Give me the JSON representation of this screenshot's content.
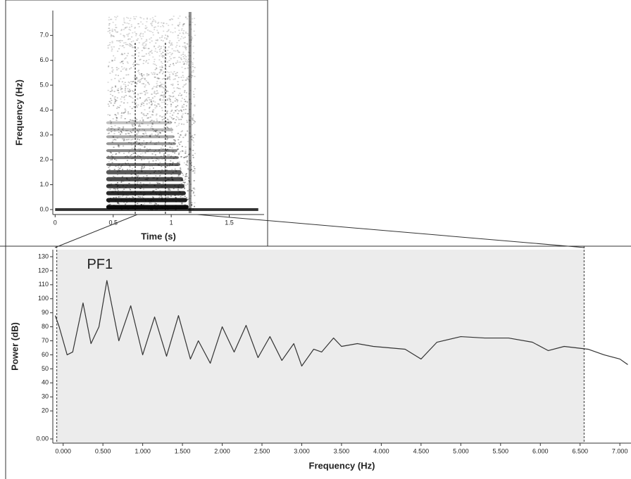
{
  "chart_data": [
    {
      "type": "spectrogram",
      "xlabel": "Time (s)",
      "ylabel": "Frequency (Hz)",
      "xlim": [
        -0.02,
        1.8
      ],
      "xticks": [
        0,
        0.5,
        1,
        1.5
      ],
      "ylim": [
        -0.2,
        8
      ],
      "yticks": [
        {
          "value": 0,
          "label": "0.0"
        },
        {
          "value": 1,
          "label": "1.0"
        },
        {
          "value": 2,
          "label": "2.0"
        },
        {
          "value": 3,
          "label": "3.0"
        },
        {
          "value": 4,
          "label": "4.0"
        },
        {
          "value": 5,
          "label": "5.0"
        },
        {
          "value": 6,
          "label": "6.0"
        },
        {
          "value": 7,
          "label": "7.0"
        }
      ]
    },
    {
      "type": "line",
      "xlabel": "Frequency (Hz)",
      "ylabel": "Power (dB)",
      "annotation": "PF1",
      "xlim": [
        -0.13,
        7.14
      ],
      "ylim": [
        -3,
        135
      ],
      "xticks": [
        {
          "value": 0,
          "label": "0.000"
        },
        {
          "value": 0.5,
          "label": "0.500"
        },
        {
          "value": 1,
          "label": "1.000"
        },
        {
          "value": 1.5,
          "label": "1.500"
        },
        {
          "value": 2,
          "label": "2.000"
        },
        {
          "value": 2.5,
          "label": "2.500"
        },
        {
          "value": 3,
          "label": "3.000"
        },
        {
          "value": 3.5,
          "label": "3.500"
        },
        {
          "value": 4,
          "label": "4.000"
        },
        {
          "value": 4.5,
          "label": "4.500"
        },
        {
          "value": 5,
          "label": "5.000"
        },
        {
          "value": 5.5,
          "label": "5.500"
        },
        {
          "value": 6,
          "label": "6.000"
        },
        {
          "value": 6.5,
          "label": "6.500"
        },
        {
          "value": 7,
          "label": "7.000"
        }
      ],
      "yticks": [
        {
          "value": 0,
          "label": "0.00"
        },
        20,
        30,
        40,
        50,
        60,
        70,
        80,
        90,
        100,
        110,
        120,
        130
      ],
      "shaded_range": [
        -0.08,
        6.55
      ],
      "color": "#333333",
      "x": [
        -0.1,
        -0.05,
        0.05,
        0.12,
        0.25,
        0.35,
        0.45,
        0.55,
        0.7,
        0.85,
        1.0,
        1.15,
        1.3,
        1.45,
        1.6,
        1.7,
        1.85,
        2.0,
        2.15,
        2.3,
        2.45,
        2.6,
        2.75,
        2.9,
        3.0,
        3.15,
        3.25,
        3.4,
        3.5,
        3.7,
        3.9,
        4.1,
        4.3,
        4.5,
        4.7,
        5.0,
        5.3,
        5.6,
        5.9,
        6.1,
        6.3,
        6.6,
        6.8,
        7.0,
        7.1
      ],
      "values": [
        88,
        80,
        60,
        62,
        97,
        68,
        80,
        113,
        70,
        95,
        60,
        87,
        59,
        88,
        57,
        70,
        54,
        80,
        62,
        81,
        58,
        73,
        56,
        68,
        52,
        64,
        62,
        72,
        66,
        68,
        66,
        65,
        64,
        57,
        69,
        73,
        72,
        72,
        69,
        63,
        66,
        64,
        60,
        57,
        53
      ]
    }
  ]
}
